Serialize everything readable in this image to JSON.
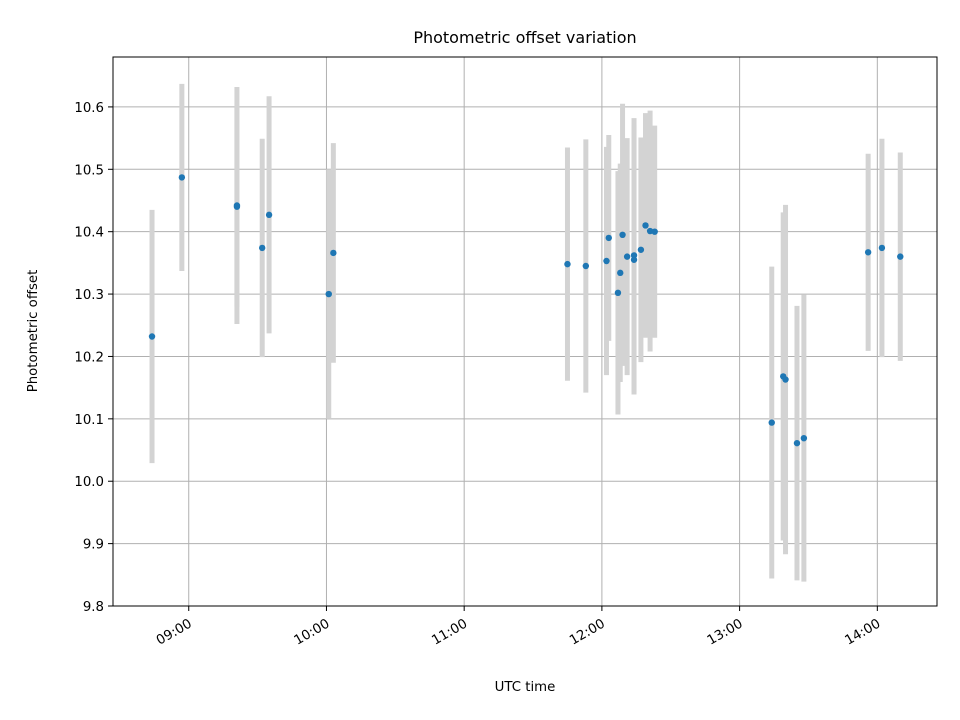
{
  "chart_data": {
    "type": "scatter",
    "title": "Photometric offset variation",
    "xlabel": "UTC time",
    "ylabel": "Photometric offset",
    "x_unit": "UTC time (HH:MM)",
    "xlim": [
      "08:27",
      "14:26"
    ],
    "ylim": [
      9.8,
      10.68
    ],
    "x_ticks": [
      "09:00",
      "10:00",
      "11:00",
      "12:00",
      "13:00",
      "14:00"
    ],
    "y_ticks": [
      9.8,
      9.9,
      10.0,
      10.1,
      10.2,
      10.3,
      10.4,
      10.5,
      10.6
    ],
    "grid": true,
    "point_color": "#1f77b4",
    "errorbar_color": "#d3d3d3",
    "points": [
      {
        "x": "08:44",
        "y": 10.232,
        "err": 0.203
      },
      {
        "x": "08:57",
        "y": 10.487,
        "err": 0.15
      },
      {
        "x": "09:21",
        "y": 10.442,
        "err": 0.19
      },
      {
        "x": "09:21",
        "y": 10.44,
        "err": 0.16
      },
      {
        "x": "09:32",
        "y": 10.374,
        "err": 0.175
      },
      {
        "x": "09:35",
        "y": 10.427,
        "err": 0.19
      },
      {
        "x": "10:01",
        "y": 10.3,
        "err": 0.2
      },
      {
        "x": "10:03",
        "y": 10.366,
        "err": 0.176
      },
      {
        "x": "11:45",
        "y": 10.348,
        "err": 0.187
      },
      {
        "x": "11:53",
        "y": 10.345,
        "err": 0.203
      },
      {
        "x": "12:02",
        "y": 10.353,
        "err": 0.183
      },
      {
        "x": "12:03",
        "y": 10.39,
        "err": 0.165
      },
      {
        "x": "12:07",
        "y": 10.302,
        "err": 0.195
      },
      {
        "x": "12:08",
        "y": 10.334,
        "err": 0.175
      },
      {
        "x": "12:09",
        "y": 10.395,
        "err": 0.21
      },
      {
        "x": "12:11",
        "y": 10.36,
        "err": 0.19
      },
      {
        "x": "12:14",
        "y": 10.355,
        "err": 0.216
      },
      {
        "x": "12:14",
        "y": 10.362,
        "err": 0.22
      },
      {
        "x": "12:17",
        "y": 10.371,
        "err": 0.18
      },
      {
        "x": "12:19",
        "y": 10.41,
        "err": 0.18
      },
      {
        "x": "12:21",
        "y": 10.401,
        "err": 0.193
      },
      {
        "x": "12:23",
        "y": 10.4,
        "err": 0.17
      },
      {
        "x": "13:14",
        "y": 10.094,
        "err": 0.25
      },
      {
        "x": "13:19",
        "y": 10.168,
        "err": 0.263
      },
      {
        "x": "13:20",
        "y": 10.163,
        "err": 0.28
      },
      {
        "x": "13:25",
        "y": 10.061,
        "err": 0.22
      },
      {
        "x": "13:28",
        "y": 10.069,
        "err": 0.23
      },
      {
        "x": "13:56",
        "y": 10.367,
        "err": 0.158
      },
      {
        "x": "14:02",
        "y": 10.374,
        "err": 0.175
      },
      {
        "x": "14:10",
        "y": 10.36,
        "err": 0.167
      }
    ]
  }
}
